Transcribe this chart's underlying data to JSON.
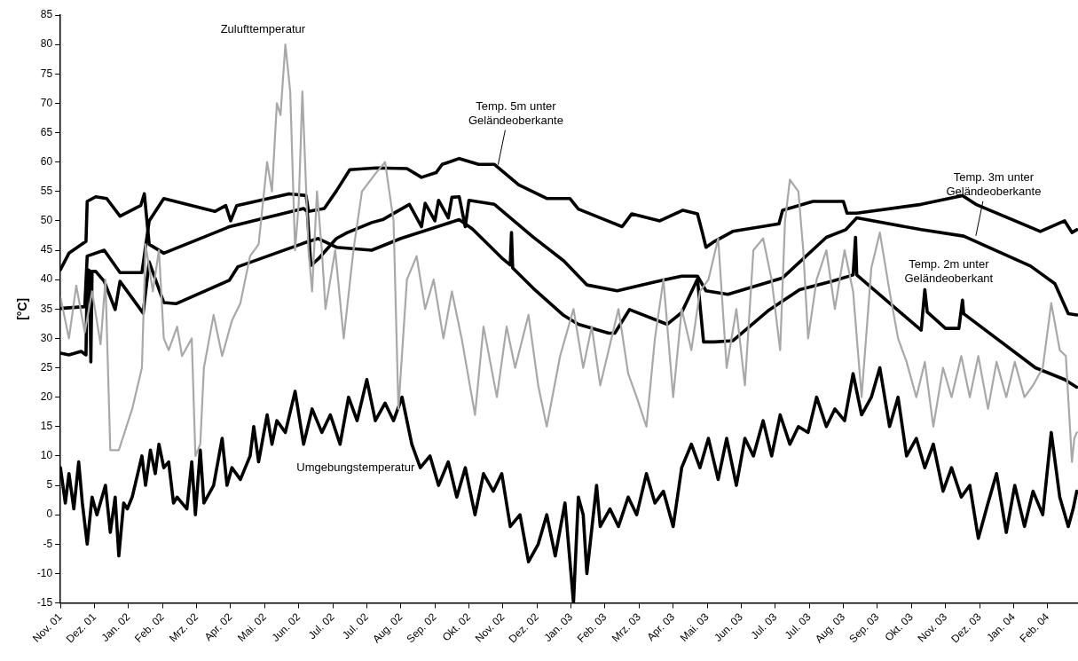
{
  "chart_data": {
    "type": "line",
    "ylabel": "[°C]",
    "xlim": [
      "2001-11-20",
      "2004-03-06"
    ],
    "ylim": [
      -15,
      85
    ],
    "grid": false,
    "yticks": [
      -15,
      -10,
      -5,
      0,
      5,
      10,
      15,
      20,
      25,
      30,
      35,
      40,
      45,
      50,
      55,
      60,
      65,
      70,
      75,
      80,
      85
    ],
    "xticks": [
      {
        "value": "2001-11-20",
        "label": "Nov. 01"
      },
      {
        "value": "2001-12-18",
        "label": "Dez. 01"
      },
      {
        "value": "2002-01-15",
        "label": "Jan. 02"
      },
      {
        "value": "2002-02-12",
        "label": "Feb. 02"
      },
      {
        "value": "2002-03-12",
        "label": "Mrz. 02"
      },
      {
        "value": "2002-04-09",
        "label": "Apr. 02"
      },
      {
        "value": "2002-05-07",
        "label": "Mai. 02"
      },
      {
        "value": "2002-06-04",
        "label": "Jun. 02"
      },
      {
        "value": "2002-07-02",
        "label": "Jul. 02"
      },
      {
        "value": "2002-07-30",
        "label": "Jul. 02"
      },
      {
        "value": "2002-08-27",
        "label": "Aug. 02"
      },
      {
        "value": "2002-09-24",
        "label": "Sep. 02"
      },
      {
        "value": "2002-10-22",
        "label": "Okt. 02"
      },
      {
        "value": "2002-11-19",
        "label": "Nov. 02"
      },
      {
        "value": "2002-12-17",
        "label": "Dez. 02"
      },
      {
        "value": "2003-01-14",
        "label": "Jan. 03"
      },
      {
        "value": "2003-02-11",
        "label": "Feb. 03"
      },
      {
        "value": "2003-03-11",
        "label": "Mrz. 03"
      },
      {
        "value": "2003-04-08",
        "label": "Apr. 03"
      },
      {
        "value": "2003-05-06",
        "label": "Mai. 03"
      },
      {
        "value": "2003-06-03",
        "label": "Jun. 03"
      },
      {
        "value": "2003-07-01",
        "label": "Jul. 03"
      },
      {
        "value": "2003-07-29",
        "label": "Jul. 03"
      },
      {
        "value": "2003-08-26",
        "label": "Aug. 03"
      },
      {
        "value": "2003-09-23",
        "label": "Sep. 03"
      },
      {
        "value": "2003-10-21",
        "label": "Okt. 03"
      },
      {
        "value": "2003-11-18",
        "label": "Nov. 03"
      },
      {
        "value": "2003-12-16",
        "label": "Dez. 03"
      },
      {
        "value": "2004-01-13",
        "label": "Jan. 04"
      },
      {
        "value": "2004-02-10",
        "label": "Feb. 04"
      }
    ],
    "annotations": [
      "Zulufttemperatur",
      {
        "text": "Temp. 5m unter\nGeländeoberkante",
        "x": "2002-11-15",
        "y": 59.1
      },
      {
        "text": "Temp. 3m unter\nGeländeoberkante",
        "x": "2003-12-13",
        "y": 47
      },
      "Temp. 2m unter\nGeländeoberkant",
      "Umgebungstemperatur"
    ],
    "series": [
      {
        "color": "#a8a8a8",
        "x": [
          "2001-11-20",
          "2001-11-27",
          "2001-12-03",
          "2001-12-10",
          "2001-12-16",
          "2001-12-23",
          "2001-12-27",
          "2001-12-31",
          "2002-01-07",
          "2002-01-18",
          "2002-01-26",
          "2002-01-29",
          "2002-02-04",
          "2002-02-09",
          "2002-02-13",
          "2002-02-17",
          "2002-02-24",
          "2002-02-28",
          "2002-03-08",
          "2002-03-11",
          "2002-03-15",
          "2002-03-18",
          "2002-03-26",
          "2002-04-02",
          "2002-04-10",
          "2002-04-17",
          "2002-04-25",
          "2002-05-02",
          "2002-05-09",
          "2002-05-13",
          "2002-05-17",
          "2002-05-20",
          "2002-05-24",
          "2002-05-28",
          "2002-06-01",
          "2002-06-04",
          "2002-06-07",
          "2002-06-12",
          "2002-06-15",
          "2002-06-19",
          "2002-06-23",
          "2002-06-26",
          "2002-07-04",
          "2002-07-11",
          "2002-07-19",
          "2002-07-26",
          "2002-08-06",
          "2002-08-14",
          "2002-08-21",
          "2002-08-25",
          "2002-09-01",
          "2002-09-09",
          "2002-09-16",
          "2002-09-23",
          "2002-10-01",
          "2002-10-08",
          "2002-10-16",
          "2002-10-27",
          "2002-11-03",
          "2002-11-14",
          "2002-11-22",
          "2002-11-29",
          "2002-12-10",
          "2002-12-18",
          "2002-12-25",
          "2003-01-05",
          "2003-01-16",
          "2003-01-24",
          "2003-01-31",
          "2003-02-07",
          "2003-02-22",
          "2003-03-02",
          "2003-03-09",
          "2003-03-17",
          "2003-03-24",
          "2003-03-31",
          "2003-04-08",
          "2003-04-15",
          "2003-04-23",
          "2003-04-30",
          "2003-05-07",
          "2003-05-15",
          "2003-05-22",
          "2003-05-30",
          "2003-06-06",
          "2003-06-13",
          "2003-06-21",
          "2003-06-28",
          "2003-07-05",
          "2003-07-09",
          "2003-07-13",
          "2003-07-20",
          "2003-07-24",
          "2003-07-28",
          "2003-08-04",
          "2003-08-12",
          "2003-08-19",
          "2003-08-27",
          "2003-09-03",
          "2003-09-10",
          "2003-09-18",
          "2003-09-25",
          "2003-10-03",
          "2003-10-10",
          "2003-10-17",
          "2003-10-25",
          "2003-11-01",
          "2003-11-08",
          "2003-11-16",
          "2003-11-23",
          "2003-12-01",
          "2003-12-08",
          "2003-12-15",
          "2003-12-23",
          "2003-12-30",
          "2004-01-07",
          "2004-01-14",
          "2004-01-22",
          "2004-01-29",
          "2004-02-06",
          "2004-02-13",
          "2004-02-20",
          "2004-02-25",
          "2004-03-01",
          "2004-03-03",
          "2004-03-05"
        ],
        "values": [
          37,
          30,
          39,
          31,
          38,
          29,
          40,
          11,
          11,
          18,
          25,
          46,
          38,
          45,
          30,
          28,
          32,
          27,
          30,
          10,
          12,
          25,
          34,
          27,
          33,
          36,
          44,
          46,
          60,
          55,
          70,
          68,
          80,
          72,
          45,
          53,
          72,
          45,
          38,
          55,
          45,
          35,
          45,
          30,
          45,
          55,
          58,
          60,
          50,
          18,
          40,
          44,
          35,
          40,
          30,
          38,
          30,
          17,
          32,
          20,
          32,
          25,
          34,
          22,
          15,
          27,
          35,
          25,
          32,
          22,
          35,
          24,
          20,
          15,
          30,
          40,
          20,
          35,
          28,
          38,
          40,
          47,
          25,
          35,
          22,
          45,
          47,
          40,
          28,
          50,
          57,
          55,
          45,
          30,
          40,
          45,
          35,
          45,
          38,
          20,
          42,
          48,
          38,
          30,
          26,
          20,
          26,
          15,
          25,
          20,
          27,
          20,
          27,
          18,
          26,
          20,
          26,
          20,
          22,
          25,
          36,
          28,
          27,
          9,
          13,
          14
        ]
      },
      {
        "color": "#000000",
        "x": [
          "2001-11-20",
          "2001-12-10",
          "2001-12-12",
          "2001-12-26",
          "2002-01-08",
          "2002-01-26",
          "2002-02-01",
          "2002-02-13",
          "2002-03-27",
          "2002-04-05",
          "2002-04-09",
          "2002-04-14",
          "2002-05-27",
          "2002-06-10",
          "2002-06-12",
          "2002-06-25",
          "2002-07-05",
          "2002-07-16",
          "2002-08-07",
          "2002-09-01",
          "2002-09-13",
          "2002-09-25",
          "2002-09-30",
          "2002-10-14",
          "2002-10-30",
          "2002-11-12",
          "2002-12-02",
          "2002-12-25",
          "2003-01-13",
          "2003-01-20",
          "2003-02-13",
          "2003-02-25",
          "2003-03-05",
          "2003-03-28",
          "2003-04-16",
          "2003-04-28",
          "2003-05-02",
          "2003-05-05",
          "2003-05-12",
          "2003-05-27",
          "2003-07-04",
          "2003-07-07",
          "2003-08-01",
          "2003-08-26",
          "2003-08-29",
          "2003-09-06",
          "2003-10-29",
          "2003-12-02",
          "2003-12-13",
          "2004-02-04",
          "2004-02-24",
          "2004-03-01",
          "2004-03-05"
        ],
        "values": [
          35.1,
          35.4,
          44,
          45,
          41.2,
          41.2,
          50,
          53.8,
          51.6,
          52.6,
          50,
          52.6,
          54.6,
          54.3,
          51.6,
          52.1,
          55.1,
          58.7,
          59,
          58.9,
          57.4,
          58.2,
          59.6,
          60.6,
          59.6,
          59.6,
          56.1,
          53.8,
          53.8,
          52,
          50,
          49,
          51.2,
          50,
          51.8,
          51.2,
          48,
          45.5,
          46.5,
          48.2,
          49.5,
          51.8,
          53.3,
          53.3,
          51.3,
          51.3,
          52.8,
          54.3,
          52.8,
          48.2,
          50,
          48,
          48.5
        ]
      },
      {
        "color": "#000000",
        "x": [
          "2001-11-20",
          "2001-11-27",
          "2001-12-11",
          "2001-12-12",
          "2001-12-19",
          "2001-12-28",
          "2002-01-08",
          "2002-01-25",
          "2002-01-28",
          "2002-02-01",
          "2002-02-13",
          "2002-04-08",
          "2002-06-08",
          "2002-06-11",
          "2002-06-14",
          "2002-06-20",
          "2002-07-05",
          "2002-07-14",
          "2002-08-03",
          "2002-08-12",
          "2002-09-03",
          "2002-09-13",
          "2002-09-16",
          "2002-09-24",
          "2002-09-27",
          "2002-10-05",
          "2002-10-08",
          "2002-10-14",
          "2002-10-19",
          "2002-10-22",
          "2002-11-12",
          "2002-12-14",
          "2003-01-08",
          "2003-01-27",
          "2003-02-21",
          "2003-03-03",
          "2003-03-24",
          "2003-04-15",
          "2003-04-28",
          "2003-05-05",
          "2003-05-23",
          "2003-07-07",
          "2003-08-12",
          "2003-08-28",
          "2003-09-06",
          "2003-10-29",
          "2003-12-03",
          "2004-01-27",
          "2004-02-16",
          "2004-02-27",
          "2004-03-05"
        ],
        "values": [
          41.7,
          44.5,
          46.5,
          53.3,
          54.1,
          53.8,
          50.8,
          52.6,
          54.6,
          46,
          44.5,
          49,
          52.1,
          51.6,
          42.4,
          43.5,
          47,
          48,
          49.7,
          50.2,
          52.8,
          49,
          53,
          50,
          53.5,
          50.5,
          54,
          54.1,
          49,
          53.5,
          52.8,
          47.2,
          43.2,
          39.1,
          38.1,
          38.6,
          39.6,
          40.6,
          40.6,
          38.1,
          37.5,
          40.3,
          47.2,
          48.5,
          50.5,
          48.5,
          47.4,
          42.3,
          39.3,
          34.2,
          34
        ]
      },
      {
        "color": "#000000",
        "x": [
          "2001-11-20",
          "2001-11-27",
          "2001-12-07",
          "2001-12-11",
          "2001-12-12",
          "2001-12-14",
          "2001-12-15",
          "2001-12-16",
          "2001-12-19",
          "2001-12-26",
          "2002-01-04",
          "2002-01-08",
          "2002-01-27",
          "2002-02-01",
          "2002-02-13",
          "2002-02-23",
          "2002-04-08",
          "2002-04-15",
          "2002-06-08",
          "2002-06-20",
          "2002-07-05",
          "2002-08-03",
          "2002-08-27",
          "2002-10-14",
          "2002-10-25",
          "2002-11-19",
          "2002-11-25",
          "2002-11-26",
          "2002-11-27",
          "2002-12-14",
          "2003-01-08",
          "2003-01-20",
          "2003-02-14",
          "2003-02-19",
          "2003-03-03",
          "2003-04-03",
          "2003-04-15",
          "2003-04-28",
          "2003-05-03",
          "2003-05-12",
          "2003-05-27",
          "2003-06-25",
          "2003-07-21",
          "2003-08-18",
          "2003-09-03",
          "2003-09-05",
          "2003-09-06",
          "2003-10-29",
          "2003-11-01",
          "2003-11-03",
          "2003-11-18",
          "2003-11-29",
          "2003-12-02",
          "2003-12-03",
          "2004-01-31",
          "2004-02-24",
          "2004-03-05"
        ],
        "values": [
          27.5,
          27.2,
          27.8,
          27.2,
          41.7,
          41.5,
          26,
          41.4,
          41.4,
          39.7,
          34.9,
          39.7,
          34.3,
          43,
          36.1,
          35.9,
          39.9,
          42.2,
          46.2,
          47,
          45.5,
          45,
          47,
          50.2,
          48.6,
          43.5,
          42.5,
          48,
          42,
          38.5,
          33.9,
          32.4,
          30.9,
          30.9,
          34.9,
          32.4,
          34.4,
          40.1,
          29.4,
          29.4,
          29.6,
          34.7,
          38.3,
          39.8,
          40.8,
          47.2,
          40.8,
          31.4,
          38.3,
          34.5,
          31.7,
          31.7,
          36.5,
          34.2,
          25,
          23,
          21.7
        ]
      },
      {
        "color": "#000000",
        "x": [
          "2001-11-20",
          "2001-11-24",
          "2001-11-27",
          "2001-12-01",
          "2001-12-05",
          "2001-12-08",
          "2001-12-12",
          "2001-12-16",
          "2001-12-20",
          "2001-12-27",
          "2001-12-31",
          "2002-01-04",
          "2002-01-07",
          "2002-01-11",
          "2002-01-14",
          "2002-01-18",
          "2002-01-26",
          "2002-01-29",
          "2002-02-02",
          "2002-02-06",
          "2002-02-09",
          "2002-02-13",
          "2002-02-17",
          "2002-02-21",
          "2002-02-24",
          "2002-03-04",
          "2002-03-08",
          "2002-03-11",
          "2002-03-15",
          "2002-03-18",
          "2002-03-26",
          "2002-04-02",
          "2002-04-06",
          "2002-04-10",
          "2002-04-17",
          "2002-04-25",
          "2002-04-28",
          "2002-05-02",
          "2002-05-09",
          "2002-05-13",
          "2002-05-17",
          "2002-05-24",
          "2002-06-01",
          "2002-06-08",
          "2002-06-15",
          "2002-06-23",
          "2002-06-30",
          "2002-07-08",
          "2002-07-15",
          "2002-07-22",
          "2002-07-30",
          "2002-08-06",
          "2002-08-14",
          "2002-08-21",
          "2002-08-28",
          "2002-09-05",
          "2002-09-12",
          "2002-09-20",
          "2002-09-27",
          "2002-10-05",
          "2002-10-12",
          "2002-10-19",
          "2002-10-27",
          "2002-11-03",
          "2002-11-11",
          "2002-11-18",
          "2002-11-25",
          "2002-12-03",
          "2002-12-10",
          "2002-12-18",
          "2002-12-25",
          "2002-12-29",
          "2003-01-01",
          "2003-01-09",
          "2003-01-16",
          "2003-01-20",
          "2003-01-24",
          "2003-01-27",
          "2003-02-04",
          "2003-02-07",
          "2003-02-15",
          "2003-02-22",
          "2003-03-02",
          "2003-03-09",
          "2003-03-17",
          "2003-03-24",
          "2003-03-31",
          "2003-04-08",
          "2003-04-15",
          "2003-04-23",
          "2003-04-30",
          "2003-05-07",
          "2003-05-15",
          "2003-05-22",
          "2003-05-30",
          "2003-06-06",
          "2003-06-13",
          "2003-06-21",
          "2003-06-28",
          "2003-07-05",
          "2003-07-13",
          "2003-07-20",
          "2003-07-28",
          "2003-08-04",
          "2003-08-12",
          "2003-08-19",
          "2003-08-27",
          "2003-09-03",
          "2003-09-10",
          "2003-09-18",
          "2003-09-25",
          "2003-10-03",
          "2003-10-10",
          "2003-10-17",
          "2003-10-25",
          "2003-11-01",
          "2003-11-08",
          "2003-11-16",
          "2003-11-23",
          "2003-12-01",
          "2003-12-08",
          "2003-12-15",
          "2003-12-23",
          "2003-12-30",
          "2004-01-07",
          "2004-01-14",
          "2004-01-22",
          "2004-01-29",
          "2004-02-06",
          "2004-02-13",
          "2004-02-20",
          "2004-02-27",
          "2004-03-02",
          "2004-03-05"
        ],
        "values": [
          8,
          2,
          7,
          1,
          9,
          2,
          -5,
          3,
          0,
          5,
          -3,
          3,
          -7,
          2,
          1,
          3,
          10,
          5,
          11,
          7,
          12,
          8,
          9,
          2,
          3,
          1,
          9,
          0,
          11,
          2,
          5,
          13,
          5,
          8,
          6,
          10,
          15,
          9,
          17,
          12,
          16,
          14,
          21,
          12,
          18,
          14,
          17,
          12,
          20,
          16,
          23,
          16,
          19,
          16,
          20,
          12,
          8,
          10,
          5,
          9,
          3,
          8,
          0,
          7,
          4,
          7,
          -2,
          0,
          -8,
          -5,
          0,
          -4,
          -7,
          2,
          -15,
          3,
          0,
          -10,
          5,
          -2,
          1,
          -2,
          3,
          0,
          7,
          2,
          4,
          -2,
          8,
          12,
          8,
          13,
          6,
          13,
          5,
          13,
          10,
          16,
          10,
          17,
          12,
          15,
          14,
          20,
          15,
          18,
          16,
          24,
          17,
          20,
          25,
          15,
          20,
          10,
          13,
          8,
          12,
          4,
          8,
          3,
          5,
          -4,
          2,
          7,
          -3,
          5,
          -2,
          4,
          0,
          14,
          3,
          -2,
          1,
          4
        ]
      }
    ]
  }
}
